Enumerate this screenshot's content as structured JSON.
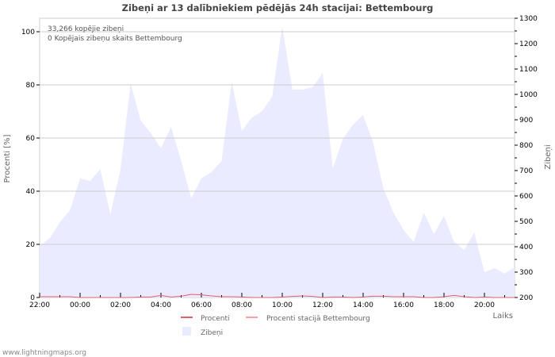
{
  "chart_data": {
    "type": "area",
    "title": "Zibeņi ar 13 dalībniekiem pēdējās 24h stacijai: Bettembourg",
    "annotations": [
      "33,266 kopējie zibeņi",
      "0 Kopējais zibeņu skaits Bettembourg"
    ],
    "xlabel": "Laiks",
    "ylabel_left": "Procenti   [%]",
    "ylabel_right": "Zibeņi",
    "ylim_left": [
      0,
      100
    ],
    "ylim_right": [
      200,
      1300
    ],
    "left_ticks": [
      "0",
      "20",
      "40",
      "60",
      "80",
      "100"
    ],
    "right_ticks": [
      "200",
      "300",
      "400",
      "500",
      "600",
      "700",
      "800",
      "900",
      "1000",
      "1100",
      "1200",
      "1300"
    ],
    "x_ticks": [
      "22:00",
      "00:00",
      "02:00",
      "04:00",
      "06:00",
      "08:00",
      "10:00",
      "12:00",
      "14:00",
      "16:00",
      "18:00",
      "20:00"
    ],
    "x_hours_start": 22,
    "interval_hours": 0.5,
    "series": [
      {
        "name": "Zibeņi",
        "axis": "right",
        "color": "#ebebff",
        "values": [
          403,
          434,
          497,
          544,
          669,
          659,
          706,
          528,
          706,
          1044,
          897,
          847,
          788,
          872,
          738,
          591,
          669,
          694,
          738,
          1050,
          856,
          909,
          934,
          991,
          1269,
          1019,
          1019,
          1028,
          1084,
          709,
          825,
          881,
          919,
          809,
          631,
          534,
          466,
          419,
          534,
          450,
          522,
          419,
          387,
          456,
          300,
          316,
          294,
          319
        ]
      },
      {
        "name": "Procenti",
        "axis": "left",
        "color": "#e0606e",
        "values": [
          0.3,
          0.3,
          0.3,
          0.3,
          0,
          0,
          0,
          0,
          0,
          0,
          0.2,
          0.2,
          0.8,
          0.2,
          0.5,
          1.2,
          1,
          0.6,
          0.3,
          0.3,
          0.2,
          0,
          0,
          0,
          0.2,
          0.4,
          0.6,
          0.4,
          0,
          0.2,
          0.2,
          0,
          0.2,
          0.5,
          0.5,
          0.3,
          0.3,
          0.3,
          0,
          0,
          0.3,
          0.8,
          0.3,
          0,
          0.2,
          0,
          0,
          0
        ]
      },
      {
        "name": "Procenti stacijā Bettembourg",
        "axis": "left",
        "color": "#ffa0a0",
        "values": []
      }
    ]
  },
  "footer": "www.lightningmaps.org"
}
